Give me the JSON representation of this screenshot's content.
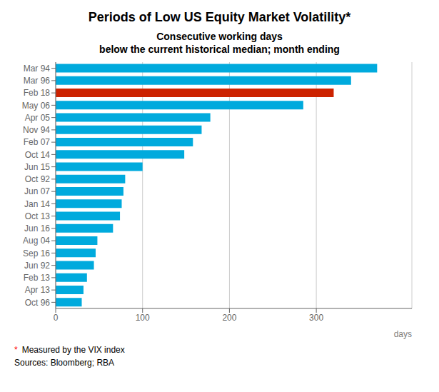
{
  "chart_data": {
    "type": "bar",
    "orientation": "horizontal",
    "title": "Periods of Low US Equity Market Volatility*",
    "subtitle": [
      "Consecutive working days",
      "below the current historical median; month ending"
    ],
    "x_label": "days",
    "categories": [
      "Oct 96",
      "Apr 13",
      "Feb 13",
      "Jun 92",
      "Sep 16",
      "Aug 04",
      "Jun 16",
      "Oct 13",
      "Jan 14",
      "Jun 07",
      "Oct 92",
      "Jun 15",
      "Oct 14",
      "Feb 07",
      "Nov 94",
      "Apr 05",
      "May 06",
      "Feb 18",
      "Mar 96",
      "Mar 94"
    ],
    "values": [
      30,
      32,
      36,
      44,
      46,
      48,
      66,
      74,
      76,
      78,
      80,
      100,
      148,
      158,
      168,
      178,
      285,
      320,
      340,
      370
    ],
    "colors": [
      "#00AADD",
      "#00AADD",
      "#00AADD",
      "#00AADD",
      "#00AADD",
      "#00AADD",
      "#00AADD",
      "#00AADD",
      "#00AADD",
      "#00AADD",
      "#00AADD",
      "#00AADD",
      "#00AADD",
      "#00AADD",
      "#00AADD",
      "#00AADD",
      "#00AADD",
      "#CC2200",
      "#00AADD",
      "#00AADD"
    ],
    "xlim": [
      0,
      410
    ],
    "xticks": [
      0,
      100,
      200,
      300
    ],
    "grid": true,
    "annotations": [
      {
        "text": "*",
        "color": "red"
      },
      {
        "text": "Measured by the VIX index"
      },
      {
        "text": "Sources:  Bloomberg; RBA"
      }
    ]
  }
}
